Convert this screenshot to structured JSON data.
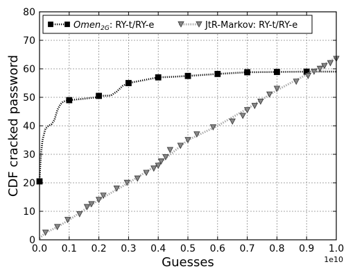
{
  "chart_data": {
    "type": "line",
    "xlabel": "Guesses",
    "ylabel": "CDF cracked password",
    "x_exponent_label": "1e10",
    "xlim": [
      0,
      1.0
    ],
    "ylim": [
      0,
      80
    ],
    "x_ticks": [
      "0.0",
      "0.1",
      "0.2",
      "0.3",
      "0.4",
      "0.5",
      "0.6",
      "0.7",
      "0.8",
      "0.9",
      "1.0"
    ],
    "y_ticks": [
      "0",
      "10",
      "20",
      "30",
      "40",
      "50",
      "60",
      "70",
      "80"
    ],
    "grid": true,
    "legend_position": "top",
    "series": [
      {
        "name": "Omen_2G: RY-t/RY-e",
        "legend_main": "Omen",
        "legend_sub": "2G",
        "legend_rest": ": RY-t/RY-e",
        "marker": "square",
        "line_style": "dotted",
        "color": "#000000",
        "curve": [
          [
            0.0,
            20.5
          ],
          [
            0.002,
            25
          ],
          [
            0.005,
            30
          ],
          [
            0.01,
            35
          ],
          [
            0.02,
            39
          ],
          [
            0.03,
            40
          ],
          [
            0.04,
            40.5
          ],
          [
            0.05,
            42
          ],
          [
            0.06,
            45.5
          ],
          [
            0.07,
            47.5
          ],
          [
            0.08,
            48.5
          ],
          [
            0.1,
            49
          ],
          [
            0.15,
            49.5
          ],
          [
            0.19,
            50
          ],
          [
            0.2,
            50.5
          ],
          [
            0.24,
            50.6
          ],
          [
            0.26,
            52
          ],
          [
            0.28,
            54
          ],
          [
            0.3,
            55
          ],
          [
            0.35,
            56
          ],
          [
            0.4,
            57
          ],
          [
            0.45,
            57.2
          ],
          [
            0.5,
            57.5
          ],
          [
            0.6,
            58.2
          ],
          [
            0.7,
            58.8
          ],
          [
            0.8,
            58.9
          ],
          [
            0.9,
            59
          ],
          [
            1.0,
            59
          ]
        ],
        "markers": [
          [
            0.0,
            20.5
          ],
          [
            0.1,
            49
          ],
          [
            0.2,
            50.5
          ],
          [
            0.3,
            55
          ],
          [
            0.4,
            57
          ],
          [
            0.5,
            57.5
          ],
          [
            0.6,
            58.2
          ],
          [
            0.7,
            58.8
          ],
          [
            0.8,
            58.9
          ],
          [
            0.9,
            59
          ]
        ]
      },
      {
        "name": "JtR-Markov: RY-t/RY-e",
        "marker": "triangle-down",
        "line_style": "dotted",
        "color": "#888888",
        "curve": [
          [
            0.0,
            0.5
          ],
          [
            0.02,
            2.5
          ],
          [
            0.06,
            4.5
          ],
          [
            0.1,
            7
          ],
          [
            0.15,
            10.5
          ],
          [
            0.2,
            14
          ],
          [
            0.3,
            20
          ],
          [
            0.4,
            26.5
          ],
          [
            0.5,
            35
          ],
          [
            0.6,
            40
          ],
          [
            0.7,
            46
          ],
          [
            0.8,
            52.5
          ],
          [
            0.9,
            58
          ],
          [
            0.95,
            61
          ],
          [
            1.0,
            64
          ]
        ],
        "markers": [
          [
            0.02,
            2.5
          ],
          [
            0.06,
            4.5
          ],
          [
            0.095,
            7
          ],
          [
            0.135,
            9
          ],
          [
            0.16,
            11.5
          ],
          [
            0.175,
            12.5
          ],
          [
            0.2,
            14
          ],
          [
            0.215,
            15.5
          ],
          [
            0.26,
            18
          ],
          [
            0.295,
            20
          ],
          [
            0.33,
            21.5
          ],
          [
            0.36,
            23.5
          ],
          [
            0.385,
            25
          ],
          [
            0.4,
            26
          ],
          [
            0.41,
            27.5
          ],
          [
            0.425,
            29
          ],
          [
            0.44,
            31.5
          ],
          [
            0.475,
            33
          ],
          [
            0.5,
            35
          ],
          [
            0.53,
            37
          ],
          [
            0.585,
            39.5
          ],
          [
            0.65,
            41.5
          ],
          [
            0.685,
            43.5
          ],
          [
            0.7,
            45.5
          ],
          [
            0.725,
            47
          ],
          [
            0.745,
            48.5
          ],
          [
            0.775,
            51
          ],
          [
            0.8,
            53
          ],
          [
            0.865,
            55.5
          ],
          [
            0.905,
            57.5
          ],
          [
            0.925,
            59
          ],
          [
            0.945,
            60
          ],
          [
            0.96,
            61
          ],
          [
            0.98,
            62
          ],
          [
            1.0,
            63.5
          ]
        ]
      }
    ]
  }
}
